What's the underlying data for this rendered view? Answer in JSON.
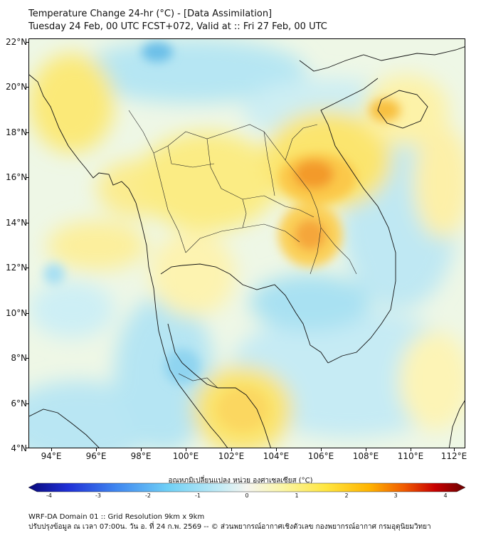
{
  "title": {
    "line1": "Temperature Change 24-hr (°C) - [Data Assimilation]",
    "line2": "Tuesday 24 Feb, 00 UTC FCST+072, Valid at :: Fri 27 Feb, 00 UTC"
  },
  "map": {
    "lat_labels": [
      "22°N",
      "20°N",
      "18°N",
      "16°N",
      "14°N",
      "12°N",
      "10°N",
      "8°N",
      "6°N",
      "4°N"
    ],
    "lon_labels": [
      "94°E",
      "96°E",
      "98°E",
      "100°E",
      "102°E",
      "104°E",
      "106°E",
      "108°E",
      "110°E",
      "112°E"
    ],
    "lat_range": [
      4,
      22.3
    ],
    "lon_range": [
      93,
      112.5
    ]
  },
  "colorbar": {
    "title": "อุณหภูมิเปลี่ยนแปลง หน่วย องศาเซลเซียส (°C)",
    "min": -4,
    "max": 4,
    "tick_labels": [
      "-4",
      "-3",
      "-2",
      "-1",
      "0",
      "1",
      "2",
      "3",
      "4"
    ],
    "colors": [
      "#08087a",
      "#1f2fd6",
      "#3f86f0",
      "#6fd0f6",
      "#c4ecf6",
      "#f5f5f0",
      "#fbf6a8",
      "#ffe640",
      "#ffb400",
      "#f05a00",
      "#c80000",
      "#6a0000"
    ]
  },
  "footer": {
    "line1": "WRF-DA Domain 01 :: Grid Resolution 9km x 9km",
    "line2": "ปรับปรุงข้อมูล ณ เวลา 07:00น. วัน อ. ที่ 24 ก.พ. 2569 -- © ส่วนพยากรณ์อากาศเชิงตัวเลข กองพยากรณ์อากาศ กรมอุตุนิยมวิทยา"
  }
}
